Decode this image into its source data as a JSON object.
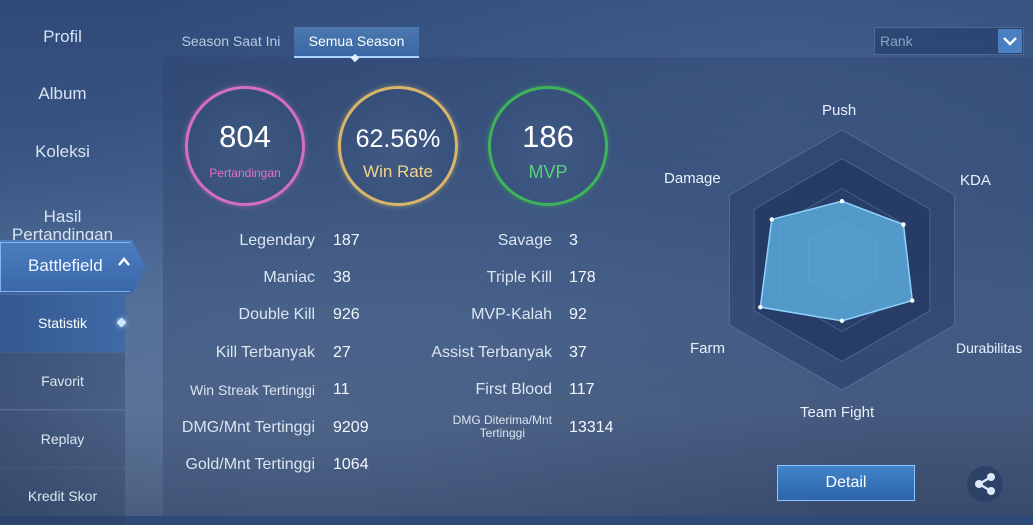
{
  "sidebar": {
    "items": [
      {
        "label": "Profil"
      },
      {
        "label": "Album"
      },
      {
        "label": "Koleksi"
      },
      {
        "label": "Hasil\nPertandingan"
      }
    ],
    "active": {
      "label": "Battlefield",
      "expanded_icon": "chevron-up-icon"
    },
    "sub_items": [
      {
        "label": "Statistik"
      },
      {
        "label": "Favorit"
      },
      {
        "label": "Replay"
      },
      {
        "label": "Kredit Skor"
      }
    ]
  },
  "tabs": [
    {
      "label": "Season Saat Ini",
      "active": false
    },
    {
      "label": "Semua Season",
      "active": true
    }
  ],
  "rank_select": {
    "value": "Rank",
    "icon": "chevron-down-icon"
  },
  "summary": {
    "matches": {
      "value": "804",
      "label": "Pertandingan",
      "color": "#d46ec0"
    },
    "win_rate": {
      "value": "62.56%",
      "label": "Win Rate",
      "color": "#d8b56a"
    },
    "mvp": {
      "value": "186",
      "label": "MVP",
      "color": "#3eb35a"
    }
  },
  "stats_left": [
    {
      "label": "Legendary",
      "value": "187"
    },
    {
      "label": "Maniac",
      "value": "38"
    },
    {
      "label": "Double Kill",
      "value": "926"
    },
    {
      "label": "Kill Terbanyak",
      "value": "27"
    },
    {
      "label": "Win Streak Tertinggi",
      "value": "11"
    },
    {
      "label": "DMG/Mnt Tertinggi",
      "value": "9209"
    },
    {
      "label": "Gold/Mnt Tertinggi",
      "value": "1064"
    }
  ],
  "stats_right": [
    {
      "label": "Savage",
      "value": "3"
    },
    {
      "label": "Triple Kill",
      "value": "178"
    },
    {
      "label": "MVP-Kalah",
      "value": "92"
    },
    {
      "label": "Assist Terbanyak",
      "value": "37"
    },
    {
      "label": "First Blood",
      "value": "117"
    },
    {
      "label": "DMG Diterima/Mnt\nTertinggi",
      "value": "13314"
    }
  ],
  "radar": {
    "axes": [
      "Push",
      "KDA",
      "Durabilitas",
      "Team Fight",
      "Farm",
      "Damage"
    ],
    "values": [
      0.58,
      0.7,
      0.8,
      0.6,
      0.93,
      0.8
    ],
    "fill_color": "#5fb4e6"
  },
  "buttons": {
    "detail": "Detail",
    "share_icon": "share-icon"
  }
}
